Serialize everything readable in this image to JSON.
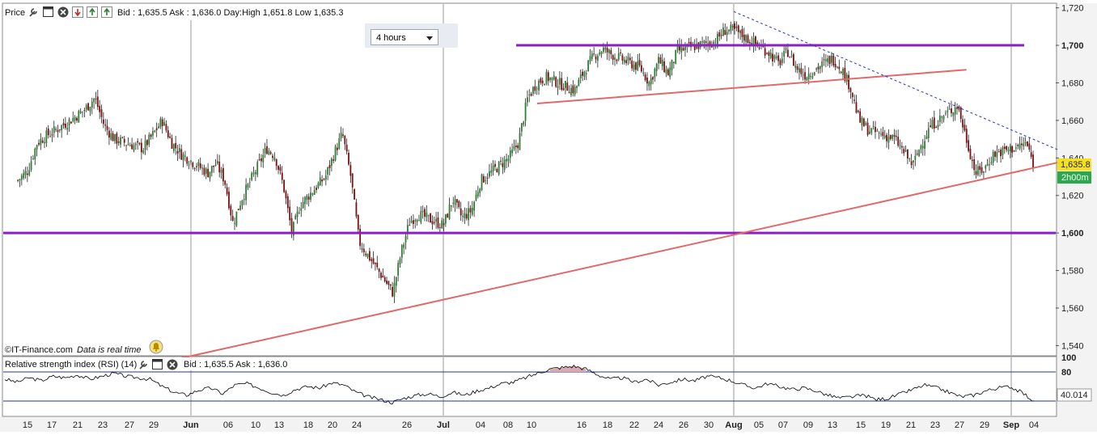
{
  "header": {
    "price_label": "Price",
    "quote": "Bid : 1,635.5 Ask : 1,636.0 Day:High 1,651.8 Low 1,635.3"
  },
  "timeframe": {
    "selected": "4 hours"
  },
  "watermark": {
    "source": "©IT-Finance.com",
    "realtime": "Data is real time"
  },
  "rsi_header": {
    "label": "Relative strength index (RSI) (14)",
    "quote": "Bid : 1,635.5 Ask : 1,636.0"
  },
  "icons": {
    "wrench": "wrench-icon",
    "window": "window-icon",
    "close": "close-icon",
    "move_down": "move-down-icon",
    "move_up": "move-up-icon",
    "alert": "bell-alert-icon"
  },
  "colors": {
    "bull_candle": "#2e7d32",
    "bear_candle": "#7a1010",
    "support_line": "#8a1fc4",
    "trend_line": "#e06a6a",
    "dotted_trend": "#2233cc",
    "price_badge": "#f4e11a",
    "timer_badge": "#2aa84a",
    "rsi_line": "#000000",
    "rsi_band": "#2233aa",
    "rsi_overbought_fill": "#d9a8b0"
  },
  "chart_data": [
    {
      "type": "candlestick",
      "title": "Price",
      "timeframe": "4 hours",
      "ylim": [
        1535,
        1722
      ],
      "y_ticks": [
        "1,540",
        "1,560",
        "1,580",
        "1,600",
        "1,620",
        "1,640",
        "1,660",
        "1,680",
        "1,700",
        "1,720"
      ],
      "x_ticks": [
        "15",
        "17",
        "21",
        "23",
        "27",
        "29",
        "Jun",
        "06",
        "10",
        "13",
        "18",
        "20",
        "24",
        "26",
        "Jul",
        "04",
        "08",
        "10",
        "16",
        "18",
        "22",
        "24",
        "26",
        "30",
        "Aug",
        "05",
        "07",
        "09",
        "13",
        "15",
        "19",
        "21",
        "23",
        "27",
        "29",
        "Sep",
        "04"
      ],
      "last_price": "1,635.8",
      "countdown": "2h00m",
      "close_path": [
        {
          "date": "May 14",
          "close": 1628
        },
        {
          "date": "May 15",
          "close": 1633
        },
        {
          "date": "May 16",
          "close": 1648
        },
        {
          "date": "May 17",
          "close": 1652
        },
        {
          "date": "May 18",
          "close": 1655
        },
        {
          "date": "May 20",
          "close": 1662
        },
        {
          "date": "May 21",
          "close": 1666
        },
        {
          "date": "May 22",
          "close": 1672
        },
        {
          "date": "May 23",
          "close": 1657
        },
        {
          "date": "May 24",
          "close": 1650
        },
        {
          "date": "May 27",
          "close": 1645
        },
        {
          "date": "May 28",
          "close": 1652
        },
        {
          "date": "May 29",
          "close": 1660
        },
        {
          "date": "May 30",
          "close": 1648
        },
        {
          "date": "May 31",
          "close": 1642
        },
        {
          "date": "Jun 03",
          "close": 1632
        },
        {
          "date": "Jun 04",
          "close": 1637
        },
        {
          "date": "Jun 05",
          "close": 1628
        },
        {
          "date": "Jun 06",
          "close": 1605
        },
        {
          "date": "Jun 07",
          "close": 1618
        },
        {
          "date": "Jun 10",
          "close": 1645
        },
        {
          "date": "Jun 11",
          "close": 1641
        },
        {
          "date": "Jun 12",
          "close": 1625
        },
        {
          "date": "Jun 13",
          "close": 1600
        },
        {
          "date": "Jun 14",
          "close": 1615
        },
        {
          "date": "Jun 17",
          "close": 1630
        },
        {
          "date": "Jun 18",
          "close": 1642
        },
        {
          "date": "Jun 19",
          "close": 1653
        },
        {
          "date": "Jun 20",
          "close": 1630
        },
        {
          "date": "Jun 21",
          "close": 1595
        },
        {
          "date": "Jun 24",
          "close": 1575
        },
        {
          "date": "Jun 25",
          "close": 1568
        },
        {
          "date": "Jun 26",
          "close": 1590
        },
        {
          "date": "Jun 27",
          "close": 1606
        },
        {
          "date": "Jun 28",
          "close": 1610
        },
        {
          "date": "Jul 01",
          "close": 1604
        },
        {
          "date": "Jul 02",
          "close": 1618
        },
        {
          "date": "Jul 03",
          "close": 1608
        },
        {
          "date": "Jul 04",
          "close": 1612
        },
        {
          "date": "Jul 05",
          "close": 1628
        },
        {
          "date": "Jul 08",
          "close": 1640
        },
        {
          "date": "Jul 09",
          "close": 1648
        },
        {
          "date": "Jul 10",
          "close": 1672
        },
        {
          "date": "Jul 11",
          "close": 1680
        },
        {
          "date": "Jul 12",
          "close": 1683
        },
        {
          "date": "Jul 15",
          "close": 1676
        },
        {
          "date": "Jul 16",
          "close": 1686
        },
        {
          "date": "Jul 17",
          "close": 1694
        },
        {
          "date": "Jul 18",
          "close": 1698
        },
        {
          "date": "Jul 19",
          "close": 1695
        },
        {
          "date": "Jul 22",
          "close": 1688
        },
        {
          "date": "Jul 23",
          "close": 1680
        },
        {
          "date": "Jul 24",
          "close": 1692
        },
        {
          "date": "Jul 25",
          "close": 1685
        },
        {
          "date": "Jul 26",
          "close": 1697
        },
        {
          "date": "Jul 29",
          "close": 1701
        },
        {
          "date": "Jul 30",
          "close": 1702
        },
        {
          "date": "Jul 31",
          "close": 1708
        },
        {
          "date": "Aug 01",
          "close": 1708
        },
        {
          "date": "Aug 02",
          "close": 1705
        },
        {
          "date": "Aug 05",
          "close": 1696
        },
        {
          "date": "Aug 06",
          "close": 1690
        },
        {
          "date": "Aug 07",
          "close": 1697
        },
        {
          "date": "Aug 08",
          "close": 1688
        },
        {
          "date": "Aug 09",
          "close": 1684
        },
        {
          "date": "Aug 12",
          "close": 1693
        },
        {
          "date": "Aug 13",
          "close": 1688
        },
        {
          "date": "Aug 14",
          "close": 1678
        },
        {
          "date": "Aug 15",
          "close": 1660
        },
        {
          "date": "Aug 16",
          "close": 1655
        },
        {
          "date": "Aug 19",
          "close": 1650
        },
        {
          "date": "Aug 20",
          "close": 1643
        },
        {
          "date": "Aug 21",
          "close": 1636
        },
        {
          "date": "Aug 22",
          "close": 1648
        },
        {
          "date": "Aug 23",
          "close": 1657
        },
        {
          "date": "Aug 26",
          "close": 1668
        },
        {
          "date": "Aug 27",
          "close": 1650
        },
        {
          "date": "Aug 28",
          "close": 1632
        },
        {
          "date": "Aug 29",
          "close": 1634
        },
        {
          "date": "Aug 30",
          "close": 1642
        },
        {
          "date": "Sep 02",
          "close": 1646
        },
        {
          "date": "Sep 03",
          "close": 1648
        },
        {
          "date": "Sep 04",
          "close": 1635.8
        }
      ],
      "horizontal_lines": [
        {
          "level": 1700
        },
        {
          "level": 1600
        }
      ],
      "trend_lines": [
        {
          "from": {
            "date": "May 29",
            "value": 1531
          },
          "to": {
            "date": "Sep 05",
            "value": 1638
          }
        },
        {
          "from": {
            "date": "Jul 11",
            "value": 1669
          },
          "to": {
            "date": "Aug 27",
            "value": 1687
          }
        },
        {
          "from": {
            "date": "Aug 01",
            "value": 1718
          },
          "to": {
            "date": "Sep 05",
            "value": 1647
          }
        }
      ]
    },
    {
      "type": "line",
      "title": "Relative strength index (RSI) (14)",
      "ylim": [
        20,
        100
      ],
      "y_ticks": [
        "100",
        "80"
      ],
      "bands": [
        80,
        40
      ],
      "last_value": "40.014",
      "values": [
        70,
        66,
        72,
        68,
        74,
        72,
        76,
        70,
        74,
        78,
        74,
        72,
        70,
        60,
        52,
        48,
        55,
        58,
        50,
        62,
        64,
        58,
        52,
        48,
        56,
        60,
        58,
        65,
        62,
        52,
        46,
        42,
        38,
        44,
        48,
        50,
        46,
        52,
        48,
        54,
        58,
        64,
        66,
        72,
        78,
        84,
        86,
        88,
        84,
        76,
        70,
        72,
        66,
        70,
        62,
        66,
        70,
        68,
        74,
        72,
        68,
        62,
        58,
        64,
        60,
        56,
        58,
        54,
        48,
        44,
        46,
        48,
        42,
        44,
        50,
        56,
        62,
        58,
        52,
        46,
        48,
        54,
        58,
        60,
        52,
        40
      ]
    }
  ]
}
